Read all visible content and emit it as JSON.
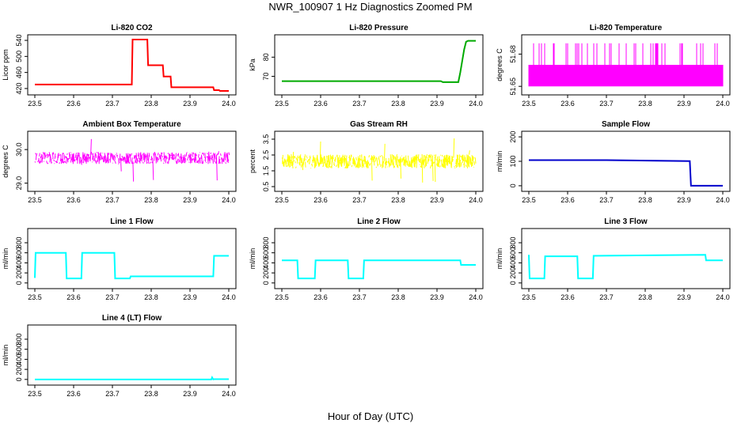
{
  "figure": {
    "title": "NWR_100907  1 Hz Diagnostics Zoomed PM",
    "x_caption": "Hour of Day (UTC)"
  },
  "chart_data": [
    {
      "type": "line",
      "title": "Li-820 CO2",
      "ylabel": "Licor ppm",
      "color": "#ff0000",
      "xlim": [
        23.5,
        24.0
      ],
      "ylim": [
        412,
        546
      ],
      "x_ticks": [
        "23.5",
        "23.6",
        "23.7",
        "23.8",
        "23.9",
        "24.0"
      ],
      "y_ticks": [
        "420",
        "460",
        "500",
        "540"
      ],
      "series": [
        {
          "x": [
            23.5,
            23.75,
            23.752,
            23.79,
            23.792,
            23.83,
            23.832,
            23.85,
            23.852,
            23.96,
            23.962,
            23.975,
            23.977,
            24.0
          ],
          "y": [
            430,
            430,
            542,
            542,
            478,
            478,
            450,
            450,
            423,
            423,
            416,
            416,
            414,
            414
          ]
        }
      ]
    },
    {
      "type": "line",
      "title": "Li-820 Pressure",
      "ylabel": "kPa",
      "color": "#00aa00",
      "xlim": [
        23.5,
        24.0
      ],
      "ylim": [
        62,
        90
      ],
      "x_ticks": [
        "23.5",
        "23.6",
        "23.7",
        "23.8",
        "23.9",
        "24.0"
      ],
      "y_ticks": [
        "70",
        "80"
      ],
      "series": [
        {
          "x": [
            23.5,
            23.91,
            23.915,
            23.955,
            23.96,
            23.965,
            23.97,
            23.975,
            23.98,
            24.0
          ],
          "y": [
            67.5,
            67.5,
            67,
            67,
            72,
            78,
            84,
            88,
            88.5,
            88.5
          ]
        }
      ]
    },
    {
      "type": "line",
      "title": "Li-820 Temperature",
      "ylabel": "degrees C",
      "color": "#ff00ff",
      "xlim": [
        23.5,
        24.0
      ],
      "ylim": [
        51.645,
        51.695
      ],
      "x_ticks": [
        "23.5",
        "23.6",
        "23.7",
        "23.8",
        "23.9",
        "24.0"
      ],
      "y_ticks": [
        "51.65",
        "51.68"
      ],
      "series": [
        {
          "x": [
            23.5,
            24.0
          ],
          "y": [
            51.67,
            51.67
          ]
        }
      ],
      "annotations": [
        "quantized: alternates between 51.65 and 51.67 with frequent spikes to 51.69"
      ]
    },
    {
      "type": "line",
      "title": "Ambient Box Temperature",
      "ylabel": "degrees C",
      "color": "#ff00ff",
      "xlim": [
        23.5,
        24.0
      ],
      "ylim": [
        28.85,
        30.45
      ],
      "x_ticks": [
        "23.5",
        "23.6",
        "23.7",
        "23.8",
        "23.9",
        "24.0"
      ],
      "y_ticks": [
        "29.0",
        "30.0"
      ],
      "series": [
        {
          "x": [
            23.5,
            24.0
          ],
          "y": [
            29.75,
            29.75
          ]
        }
      ],
      "annotations": [
        "noisy signal ranging about 29.4 to 30.1"
      ]
    },
    {
      "type": "line",
      "title": "Gas Stream RH",
      "ylabel": "percent",
      "color": "#ffff00",
      "xlim": [
        23.5,
        24.0
      ],
      "ylim": [
        0.4,
        3.8
      ],
      "x_ticks": [
        "23.5",
        "23.6",
        "23.7",
        "23.8",
        "23.9",
        "24.0"
      ],
      "y_ticks": [
        "0.5",
        "1.5",
        "2.5",
        "3.5"
      ],
      "series": [
        {
          "x": [
            23.5,
            24.0
          ],
          "y": [
            2.1,
            2.1
          ]
        }
      ],
      "annotations": [
        "noisy signal ranging about 0.7 to 3.6"
      ]
    },
    {
      "type": "line",
      "title": "Sample Flow",
      "ylabel": "ml/min",
      "color": "#0000cc",
      "xlim": [
        23.5,
        24.0
      ],
      "ylim": [
        -10,
        210
      ],
      "x_ticks": [
        "23.5",
        "23.6",
        "23.7",
        "23.8",
        "23.9",
        "24.0"
      ],
      "y_ticks": [
        "0",
        "100",
        "200"
      ],
      "series": [
        {
          "x": [
            23.5,
            23.7,
            23.915,
            23.918,
            24.0
          ],
          "y": [
            105,
            105,
            101,
            0,
            0
          ]
        }
      ]
    },
    {
      "type": "line",
      "title": "Line 1 Flow",
      "ylabel": "ml/min",
      "color": "#00ffff",
      "xlim": [
        23.5,
        24.0
      ],
      "ylim": [
        -50,
        1020
      ],
      "x_ticks": [
        "23.5",
        "23.6",
        "23.7",
        "23.8",
        "23.9",
        "24.0"
      ],
      "y_ticks": [
        "0",
        "200",
        "400",
        "600",
        "800"
      ],
      "series": [
        {
          "x": [
            23.5,
            23.502,
            23.58,
            23.582,
            23.62,
            23.622,
            23.705,
            23.707,
            23.745,
            23.747,
            23.96,
            23.962,
            24.0
          ],
          "y": [
            100,
            600,
            600,
            90,
            90,
            600,
            600,
            90,
            90,
            130,
            130,
            540,
            540
          ]
        }
      ]
    },
    {
      "type": "line",
      "title": "Line 2 Flow",
      "ylabel": "ml/min",
      "color": "#00ffff",
      "xlim": [
        23.5,
        24.0
      ],
      "ylim": [
        -50,
        1020
      ],
      "x_ticks": [
        "23.5",
        "23.6",
        "23.7",
        "23.8",
        "23.9",
        "24.0"
      ],
      "y_ticks": [
        "0",
        "200",
        "400",
        "600",
        "800"
      ],
      "series": [
        {
          "x": [
            23.5,
            23.54,
            23.542,
            23.585,
            23.587,
            23.67,
            23.672,
            23.71,
            23.712,
            23.96,
            23.962,
            24.0
          ],
          "y": [
            450,
            450,
            90,
            90,
            450,
            450,
            90,
            90,
            450,
            450,
            360,
            360
          ]
        }
      ]
    },
    {
      "type": "line",
      "title": "Line 3 Flow",
      "ylabel": "ml/min",
      "color": "#00ffff",
      "xlim": [
        23.5,
        24.0
      ],
      "ylim": [
        -50,
        1020
      ],
      "x_ticks": [
        "23.5",
        "23.6",
        "23.7",
        "23.8",
        "23.9",
        "24.0"
      ],
      "y_ticks": [
        "0",
        "200",
        "400",
        "600",
        "800"
      ],
      "series": [
        {
          "x": [
            23.5,
            23.502,
            23.54,
            23.542,
            23.625,
            23.627,
            23.665,
            23.667,
            23.955,
            23.957,
            24.0
          ],
          "y": [
            560,
            90,
            90,
            530,
            530,
            90,
            90,
            540,
            560,
            450,
            450
          ]
        }
      ]
    },
    {
      "type": "line",
      "title": "Line 4 (LT) Flow",
      "ylabel": "ml/min",
      "color": "#00ffff",
      "xlim": [
        23.5,
        24.0
      ],
      "ylim": [
        -50,
        1020
      ],
      "x_ticks": [
        "23.5",
        "23.6",
        "23.7",
        "23.8",
        "23.9",
        "24.0"
      ],
      "y_ticks": [
        "0",
        "200",
        "400",
        "600",
        "800"
      ],
      "series": [
        {
          "x": [
            23.5,
            23.955,
            23.957,
            23.96,
            23.962,
            24.0
          ],
          "y": [
            0,
            0,
            40,
            0,
            5,
            5
          ]
        }
      ]
    }
  ]
}
